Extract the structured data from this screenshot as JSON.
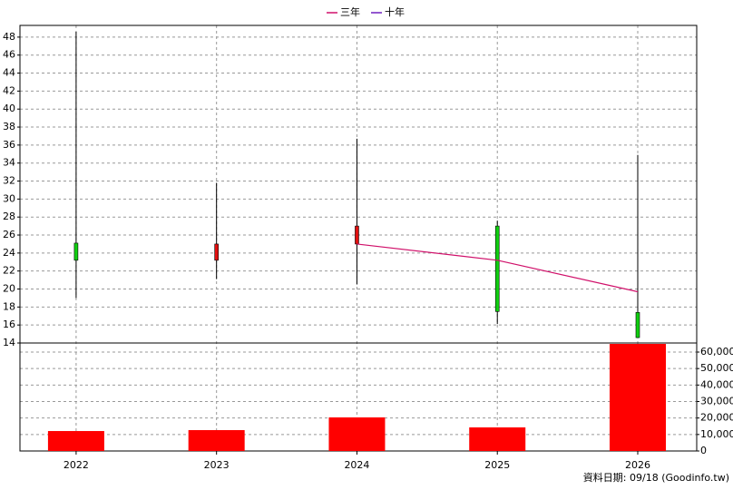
{
  "chart_data": {
    "type": "candlestick",
    "x": [
      2022,
      2023,
      2024,
      2025,
      2026
    ],
    "xlim": [
      2021.6,
      2026.42
    ],
    "xticks": [
      2022,
      2023,
      2024,
      2025,
      2026
    ],
    "open": [
      25.1,
      23.2,
      25.0,
      27.0,
      17.4
    ],
    "high": [
      48.6,
      31.8,
      36.7,
      27.6,
      34.9
    ],
    "low": [
      19.0,
      21.1,
      20.5,
      16.1,
      14.6
    ],
    "close": [
      23.2,
      25.0,
      27.0,
      17.5,
      14.6
    ],
    "up_color": "#e01010",
    "down_color": "#10d010",
    "series": [
      {
        "name": "三年",
        "color": "#d0106a",
        "values": [
          null,
          null,
          25.0,
          23.2,
          19.7
        ]
      },
      {
        "name": "十年",
        "color": "#7020c0",
        "values": [
          null,
          null,
          null,
          null,
          null
        ]
      }
    ],
    "ylim": [
      14,
      49.3
    ],
    "yticks": [
      14,
      16,
      18,
      20,
      22,
      24,
      26,
      28,
      30,
      32,
      34,
      36,
      38,
      40,
      42,
      44,
      46,
      48
    ],
    "volume": [
      12100,
      12660,
      20370,
      14300,
      64950
    ],
    "volume_color": "#ff0000",
    "y2lim": [
      0,
      65500
    ],
    "y2ticks": [
      0,
      {
        "value": 10000,
        "label": "10,000"
      },
      {
        "value": 20000,
        "label": "20,000"
      },
      {
        "value": 30000,
        "label": "30,000"
      },
      {
        "value": 40000,
        "label": "40,000"
      },
      {
        "value": 50000,
        "label": "50,000"
      },
      {
        "value": 60000,
        "label": "60,000"
      }
    ],
    "grid": true
  },
  "footer": "資料日期: 09/18  (Goodinfo.tw)"
}
